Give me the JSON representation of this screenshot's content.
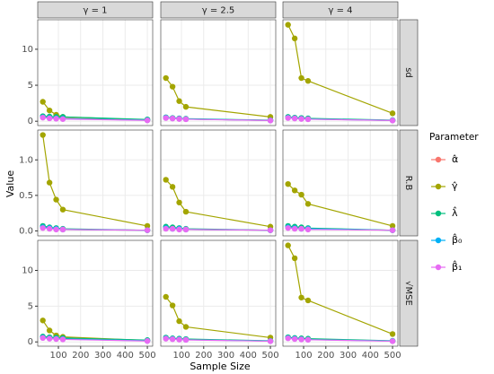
{
  "chart_data": {
    "type": "line",
    "x_label": "Sample Size",
    "y_label": "Value",
    "legend_title": "Parameter",
    "x": [
      30,
      60,
      90,
      120,
      500
    ],
    "xlim": [
      7,
      524
    ],
    "xticks": [
      100,
      200,
      300,
      400,
      500
    ],
    "grid": true,
    "legend_position": "right",
    "columns": [
      {
        "label": "γ = 1"
      },
      {
        "label": "γ = 2.5"
      },
      {
        "label": "γ = 4"
      }
    ],
    "rows": [
      {
        "label": "sd",
        "ylim": [
          -0.6,
          14.1
        ],
        "yticks": [
          0,
          5,
          10
        ]
      },
      {
        "label": "R.B",
        "ylim": [
          -0.07,
          1.42
        ],
        "yticks": [
          {
            "value": 0,
            "label": "0.0"
          },
          0.5,
          {
            "value": 1,
            "label": "1.0"
          }
        ]
      },
      {
        "label": "√MSE",
        "ylim": [
          -0.6,
          14.2
        ],
        "yticks": [
          0,
          5,
          10
        ]
      }
    ],
    "series": [
      {
        "name": "α̂",
        "color": "#F8766D"
      },
      {
        "name": "γ̂",
        "color": "#A3A500"
      },
      {
        "name": "λ̂",
        "color": "#00BF7D"
      },
      {
        "name": "β̂₀",
        "color": "#00B0F6"
      },
      {
        "name": "β̂₁",
        "color": "#E76BF3"
      }
    ],
    "panels": [
      {
        "series": [
          {
            "values": [
              0.6,
              0.5,
              0.45,
              0.4,
              0.15
            ]
          },
          {
            "values": [
              2.7,
              1.5,
              0.9,
              0.6,
              0.2
            ]
          },
          {
            "values": [
              0.7,
              0.65,
              0.6,
              0.6,
              0.25
            ]
          },
          {
            "values": [
              0.55,
              0.45,
              0.4,
              0.35,
              0.15
            ]
          },
          {
            "values": [
              0.5,
              0.4,
              0.35,
              0.3,
              0.12
            ]
          }
        ]
      },
      {
        "series": [
          {
            "values": [
              0.5,
              0.4,
              0.35,
              0.3,
              0.12
            ]
          },
          {
            "values": [
              6.0,
              4.8,
              2.8,
              2.0,
              0.6
            ]
          },
          {
            "values": [
              0.55,
              0.45,
              0.4,
              0.35,
              0.15
            ]
          },
          {
            "values": [
              0.5,
              0.4,
              0.35,
              0.3,
              0.12
            ]
          },
          {
            "values": [
              0.45,
              0.38,
              0.32,
              0.28,
              0.1
            ]
          }
        ]
      },
      {
        "series": [
          {
            "values": [
              0.55,
              0.45,
              0.4,
              0.35,
              0.12
            ]
          },
          {
            "values": [
              13.4,
              11.5,
              6.0,
              5.6,
              1.1
            ]
          },
          {
            "values": [
              0.6,
              0.5,
              0.45,
              0.4,
              0.15
            ]
          },
          {
            "values": [
              0.5,
              0.42,
              0.36,
              0.3,
              0.12
            ]
          },
          {
            "values": [
              0.45,
              0.38,
              0.32,
              0.28,
              0.1
            ]
          }
        ]
      },
      {
        "series": [
          {
            "values": [
              0.06,
              0.04,
              0.03,
              0.02,
              0.01
            ]
          },
          {
            "values": [
              1.35,
              0.68,
              0.44,
              0.3,
              0.07
            ]
          },
          {
            "values": [
              0.07,
              0.05,
              0.04,
              0.03,
              0.01
            ]
          },
          {
            "values": [
              0.05,
              0.04,
              0.03,
              0.02,
              0.01
            ]
          },
          {
            "values": [
              0.04,
              0.03,
              0.02,
              0.02,
              0.01
            ]
          }
        ]
      },
      {
        "series": [
          {
            "values": [
              0.05,
              0.04,
              0.03,
              0.02,
              0.01
            ]
          },
          {
            "values": [
              0.72,
              0.62,
              0.4,
              0.27,
              0.06
            ]
          },
          {
            "values": [
              0.06,
              0.05,
              0.04,
              0.03,
              0.01
            ]
          },
          {
            "values": [
              0.04,
              0.03,
              0.03,
              0.02,
              0.01
            ]
          },
          {
            "values": [
              0.03,
              0.03,
              0.02,
              0.02,
              0.01
            ]
          }
        ]
      },
      {
        "series": [
          {
            "values": [
              0.06,
              0.05,
              0.04,
              0.03,
              0.01
            ]
          },
          {
            "values": [
              0.66,
              0.57,
              0.51,
              0.38,
              0.07
            ]
          },
          {
            "values": [
              0.07,
              0.06,
              0.05,
              0.04,
              0.01
            ]
          },
          {
            "values": [
              0.05,
              0.04,
              0.03,
              0.03,
              0.01
            ]
          },
          {
            "values": [
              0.04,
              0.03,
              0.03,
              0.02,
              0.01
            ]
          }
        ]
      },
      {
        "series": [
          {
            "values": [
              0.65,
              0.55,
              0.5,
              0.45,
              0.18
            ]
          },
          {
            "values": [
              3.0,
              1.6,
              0.9,
              0.7,
              0.2
            ]
          },
          {
            "values": [
              0.75,
              0.65,
              0.6,
              0.55,
              0.25
            ]
          },
          {
            "values": [
              0.6,
              0.5,
              0.45,
              0.4,
              0.15
            ]
          },
          {
            "values": [
              0.55,
              0.45,
              0.4,
              0.35,
              0.12
            ]
          }
        ]
      },
      {
        "series": [
          {
            "values": [
              0.55,
              0.45,
              0.4,
              0.35,
              0.12
            ]
          },
          {
            "values": [
              6.3,
              5.1,
              2.9,
              2.1,
              0.6
            ]
          },
          {
            "values": [
              0.6,
              0.5,
              0.45,
              0.4,
              0.15
            ]
          },
          {
            "values": [
              0.5,
              0.42,
              0.36,
              0.3,
              0.12
            ]
          },
          {
            "values": [
              0.45,
              0.38,
              0.32,
              0.28,
              0.1
            ]
          }
        ]
      },
      {
        "series": [
          {
            "values": [
              0.6,
              0.5,
              0.45,
              0.4,
              0.12
            ]
          },
          {
            "values": [
              13.5,
              11.7,
              6.2,
              5.8,
              1.1
            ]
          },
          {
            "values": [
              0.65,
              0.55,
              0.5,
              0.45,
              0.15
            ]
          },
          {
            "values": [
              0.55,
              0.45,
              0.38,
              0.32,
              0.12
            ]
          },
          {
            "values": [
              0.5,
              0.4,
              0.34,
              0.3,
              0.1
            ]
          }
        ]
      }
    ]
  }
}
